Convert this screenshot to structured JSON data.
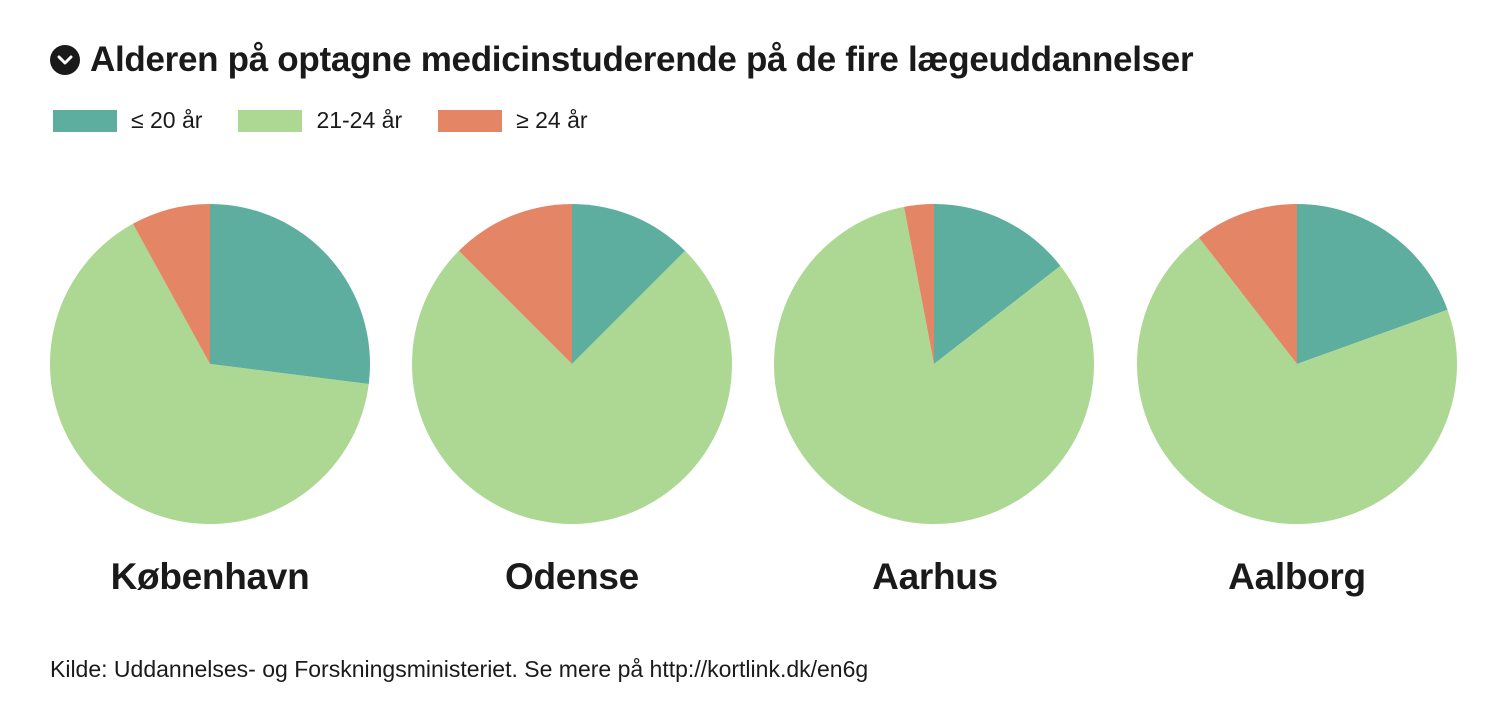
{
  "header": {
    "title": "Alderen på optagne medicinstuderende på de fire lægeuddannelser",
    "collapse_icon": "chevron-down-circle-icon"
  },
  "legend": [
    {
      "label": "≤ 20 år",
      "color": "#5eae9f"
    },
    {
      "label": "21-24 år",
      "color": "#add893"
    },
    {
      "label": "≥ 24 år",
      "color": "#e48666"
    }
  ],
  "chart_data": {
    "type": "pie",
    "categories": [
      "≤ 20 år",
      "21-24 år",
      "≥ 24 år"
    ],
    "colors": [
      "#5eae9f",
      "#add893",
      "#e48666"
    ],
    "legend_position": "top-left",
    "pies": [
      {
        "name": "København",
        "values": [
          27,
          65,
          8
        ]
      },
      {
        "name": "Odense",
        "values": [
          12.5,
          75,
          12.5
        ]
      },
      {
        "name": "Aarhus",
        "values": [
          14.5,
          82.5,
          3
        ]
      },
      {
        "name": "Aalborg",
        "values": [
          19.5,
          70,
          10.5
        ]
      }
    ]
  },
  "footer": {
    "source": "Kilde: Uddannelses- og Forskningsministeriet. Se mere på http://kortlink.dk/en6g"
  }
}
